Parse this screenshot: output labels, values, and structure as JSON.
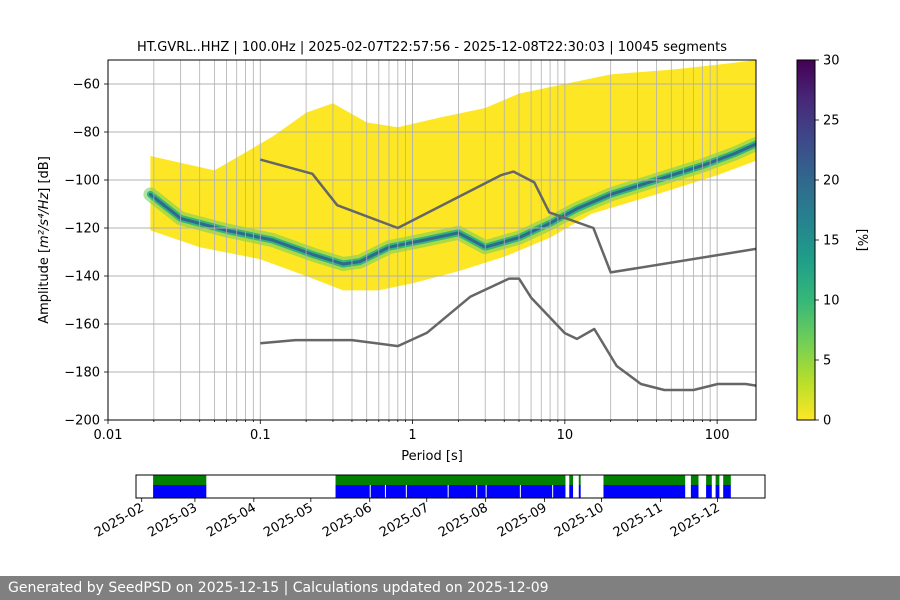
{
  "chart_data": [
    {
      "type": "heatmap",
      "title": "HT.GVRL..HHZ | 100.0Hz | 2025-02-07T22:57:56 - 2025-12-08T22:30:03 | 10045 segments",
      "xlabel": "Period [s]",
      "ylabel_main": "Amplitude [",
      "ylabel_units": "m²/s⁴/Hz",
      "ylabel_tail": "] [dB]",
      "x_scale": "log",
      "xlim": [
        0.01,
        180
      ],
      "ylim": [
        -200,
        -50
      ],
      "x_ticks": [
        {
          "value": 0.01,
          "label": "0.01"
        },
        {
          "value": 0.1,
          "label": "0.1"
        },
        {
          "value": 1,
          "label": "1"
        },
        {
          "value": 10,
          "label": "10"
        },
        {
          "value": 100,
          "label": "100"
        }
      ],
      "y_ticks": [
        {
          "value": -60,
          "label": "−60"
        },
        {
          "value": -80,
          "label": "−80"
        },
        {
          "value": -100,
          "label": "−100"
        },
        {
          "value": -120,
          "label": "−120"
        },
        {
          "value": -140,
          "label": "−140"
        },
        {
          "value": -160,
          "label": "−160"
        },
        {
          "value": -180,
          "label": "−180"
        },
        {
          "value": -200,
          "label": "−200"
        }
      ],
      "colorbar": {
        "label": "[%]",
        "range": [
          0,
          30
        ],
        "ticks": [
          {
            "value": 0,
            "label": "0"
          },
          {
            "value": 5,
            "label": "5"
          },
          {
            "value": 10,
            "label": "10"
          },
          {
            "value": 15,
            "label": "15"
          },
          {
            "value": 20,
            "label": "20"
          },
          {
            "value": 25,
            "label": "25"
          },
          {
            "value": 30,
            "label": "30"
          }
        ],
        "colors": [
          "#fde725",
          "#b5de2b",
          "#6ece58",
          "#35b779",
          "#1f9e89",
          "#26828e",
          "#31688e",
          "#3e4989",
          "#482878",
          "#440154"
        ]
      },
      "mode_line": [
        [
          0.019,
          -106
        ],
        [
          0.03,
          -116
        ],
        [
          0.06,
          -121
        ],
        [
          0.12,
          -125
        ],
        [
          0.22,
          -131
        ],
        [
          0.35,
          -135
        ],
        [
          0.45,
          -134
        ],
        [
          0.7,
          -128
        ],
        [
          1.2,
          -125
        ],
        [
          2,
          -122
        ],
        [
          3,
          -128
        ],
        [
          5,
          -124
        ],
        [
          8,
          -118
        ],
        [
          12,
          -112
        ],
        [
          20,
          -106
        ],
        [
          40,
          -100
        ],
        [
          80,
          -94
        ],
        [
          130,
          -89
        ],
        [
          180,
          -85
        ]
      ],
      "distribution_upper": [
        [
          0.019,
          -90
        ],
        [
          0.05,
          -96
        ],
        [
          0.12,
          -82
        ],
        [
          0.2,
          -72
        ],
        [
          0.3,
          -68
        ],
        [
          0.5,
          -76
        ],
        [
          0.8,
          -78
        ],
        [
          1.5,
          -74
        ],
        [
          3,
          -70
        ],
        [
          5,
          -64
        ],
        [
          10,
          -60
        ],
        [
          20,
          -56
        ],
        [
          50,
          -54
        ],
        [
          100,
          -52
        ],
        [
          180,
          -50
        ]
      ],
      "distribution_lower": [
        [
          0.019,
          -121
        ],
        [
          0.04,
          -128
        ],
        [
          0.1,
          -133
        ],
        [
          0.2,
          -140
        ],
        [
          0.35,
          -146
        ],
        [
          0.6,
          -146
        ],
        [
          1,
          -143
        ],
        [
          2,
          -138
        ],
        [
          4,
          -132
        ],
        [
          8,
          -124
        ],
        [
          15,
          -114
        ],
        [
          40,
          -106
        ],
        [
          100,
          -98
        ],
        [
          180,
          -92
        ]
      ],
      "nhnm": [
        [
          0.1,
          -91.5
        ],
        [
          0.22,
          -97.4
        ],
        [
          0.32,
          -110.5
        ],
        [
          0.8,
          -120
        ],
        [
          3.8,
          -98
        ],
        [
          4.6,
          -96.5
        ],
        [
          6.3,
          -101
        ],
        [
          7.9,
          -113.5
        ],
        [
          15.4,
          -120
        ],
        [
          20,
          -138.5
        ],
        [
          180,
          -128.7
        ]
      ],
      "nlnm": [
        [
          0.1,
          -168
        ],
        [
          0.17,
          -166.7
        ],
        [
          0.4,
          -166.7
        ],
        [
          0.8,
          -169.2
        ],
        [
          1.24,
          -163.7
        ],
        [
          2.4,
          -148.6
        ],
        [
          4.3,
          -141.1
        ],
        [
          5,
          -141.1
        ],
        [
          6,
          -149
        ],
        [
          10,
          -163.8
        ],
        [
          12,
          -166.2
        ],
        [
          15.6,
          -162.1
        ],
        [
          21.9,
          -177.5
        ],
        [
          31.6,
          -185
        ],
        [
          45,
          -187.5
        ],
        [
          70,
          -187.5
        ],
        [
          101,
          -185
        ],
        [
          154,
          -185
        ],
        [
          180,
          -185.7
        ]
      ]
    },
    {
      "type": "timeline",
      "ticks": [
        "2025-02",
        "2025-03",
        "2025-04",
        "2025-05",
        "2025-06",
        "2025-07",
        "2025-08",
        "2025-09",
        "2025-10",
        "2025-11",
        "2025-12"
      ],
      "range": [
        "2025-01-29",
        "2025-12-26"
      ],
      "coverage_colors": {
        "data": "#0000ff",
        "processed": "#008000"
      },
      "segments": [
        [
          "2025-02-07",
          "2025-03-07"
        ],
        [
          "2025-05-14",
          "2025-09-12"
        ],
        [
          "2025-09-14",
          "2025-09-16"
        ],
        [
          "2025-09-19",
          "2025-09-20"
        ],
        [
          "2025-10-02",
          "2025-11-14"
        ],
        [
          "2025-11-17",
          "2025-11-21"
        ],
        [
          "2025-11-25",
          "2025-11-28"
        ],
        [
          "2025-11-30",
          "2025-12-02"
        ],
        [
          "2025-12-04",
          "2025-12-08"
        ]
      ],
      "gaps": [
        "2025-06-01",
        "2025-06-09",
        "2025-06-20",
        "2025-07-12",
        "2025-07-27",
        "2025-08-01",
        "2025-08-19",
        "2025-09-05"
      ]
    }
  ],
  "footer": {
    "text": "Generated by SeedPSD on 2025-12-15 | Calculations updated on 2025-12-09"
  }
}
